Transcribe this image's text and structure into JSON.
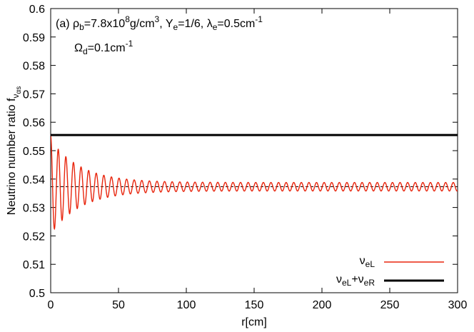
{
  "chart_data": {
    "type": "line",
    "xlabel": "r[cm]",
    "ylabel": {
      "main": "Neutrino number ratio f",
      "sub": "ν",
      "subsub": "αs"
    },
    "xlim": [
      0,
      300
    ],
    "ylim": [
      0.5,
      0.6
    ],
    "x_ticks": [
      0,
      50,
      100,
      150,
      200,
      250,
      300
    ],
    "y_ticks": [
      0.5,
      0.51,
      0.52,
      0.53,
      0.54,
      0.55,
      0.56,
      0.57,
      0.58,
      0.59,
      0.6
    ],
    "x_tick_labels": [
      "0",
      "50",
      "100",
      "150",
      "200",
      "250",
      "300"
    ],
    "y_tick_labels": [
      "0.5",
      "0.51",
      "0.52",
      "0.53",
      "0.54",
      "0.55",
      "0.56",
      "0.57",
      "0.58",
      "0.59",
      "0.6"
    ],
    "grid": false,
    "legend_position": "bottom-right",
    "annotation": {
      "line1": {
        "prefix": "(a) ",
        "rho": "ρ",
        "rho_sub": "b",
        "rho_val": "=7.8x10",
        "rho_exp": "8",
        "rho_unit": "g/cm",
        "rho_unit_exp": "3",
        "sep1": ",  Y",
        "ye_sub": "e",
        "ye_val": "=1/6,  ",
        "lambda": "λ",
        "lambda_sub": "e",
        "lambda_val": "=0.5cm",
        "lambda_exp": "-1"
      },
      "line2": {
        "omega": "Ω",
        "omega_sub": "d",
        "omega_val": "=0.1cm",
        "omega_exp": "-1"
      }
    },
    "series": [
      {
        "name": "νeL",
        "legend": {
          "base": "ν",
          "sub": "eL"
        },
        "color": "#e8260e",
        "kind": "damped_oscillation",
        "x_range": [
          0,
          300
        ],
        "start": 0.5555,
        "equilibrium": 0.5373,
        "first_min": 0.5225,
        "final_amplitude": 0.0015,
        "period": 5.6
      },
      {
        "name": "νeL+νeR",
        "legend": {
          "base1": "ν",
          "sub1": "eL",
          "plus": "+",
          "base2": "ν",
          "sub2": "eR"
        },
        "color": "#000000",
        "kind": "constant",
        "x": [
          0,
          300
        ],
        "y": [
          0.5555,
          0.5555
        ]
      },
      {
        "kind": "reference",
        "color": "#000000",
        "x": [
          0,
          300
        ],
        "y": [
          0.5373,
          0.5373
        ]
      }
    ]
  }
}
